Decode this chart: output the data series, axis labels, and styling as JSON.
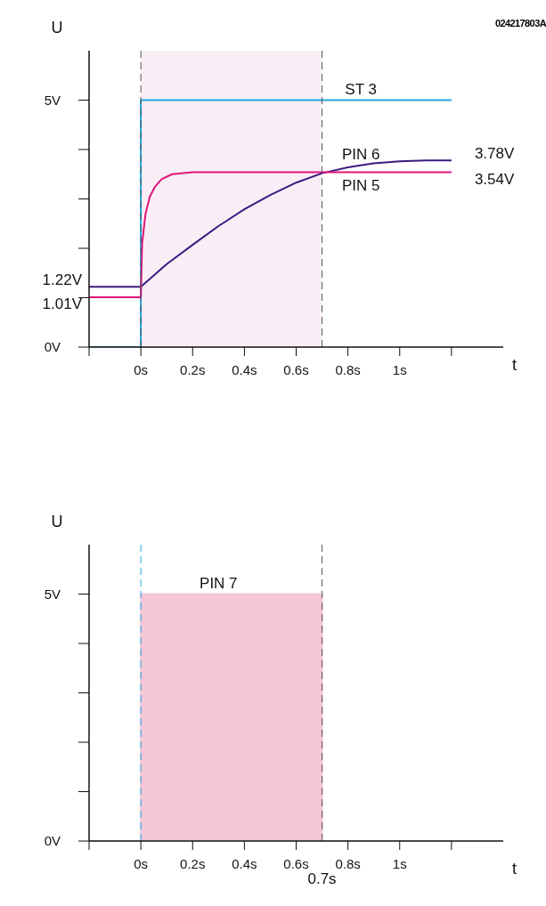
{
  "chart_data": [
    {
      "type": "line",
      "xlabel": "t",
      "ylabel": "U",
      "xlim": [
        -0.2,
        1.4
      ],
      "ylim": [
        0,
        6
      ],
      "xticks": [
        {
          "value": -0.2,
          "label": null
        },
        {
          "value": 0,
          "label": "0s"
        },
        {
          "value": 0.2,
          "label": "0.2s"
        },
        {
          "value": 0.4,
          "label": "0.4s"
        },
        {
          "value": 0.6,
          "label": "0.6s"
        },
        {
          "value": 0.8,
          "label": "0.8s"
        },
        {
          "value": 1,
          "label": "1s"
        },
        {
          "value": 1.2,
          "label": null
        }
      ],
      "yticks": [
        {
          "value": 0,
          "label": "0V"
        },
        {
          "value": 1,
          "label": null
        },
        {
          "value": 2,
          "label": null
        },
        {
          "value": 3,
          "label": null
        },
        {
          "value": 4,
          "label": null
        },
        {
          "value": 5,
          "label": "5V"
        }
      ],
      "series": [
        {
          "name": "ST 3",
          "color": "#1fa8e0",
          "x": [
            -0.2,
            0,
            0,
            1.2
          ],
          "values": [
            0,
            0,
            5,
            5
          ]
        },
        {
          "name": "PIN 6",
          "color": "#3b1a80",
          "x": [
            -0.2,
            0,
            0.1,
            0.2,
            0.3,
            0.4,
            0.5,
            0.6,
            0.7,
            0.8,
            0.9,
            1.0,
            1.1,
            1.2
          ],
          "values": [
            1.22,
            1.22,
            1.68,
            2.07,
            2.45,
            2.79,
            3.08,
            3.33,
            3.52,
            3.64,
            3.72,
            3.76,
            3.78,
            3.78
          ]
        },
        {
          "name": "PIN 5",
          "color": "#e0147a",
          "x": [
            -0.2,
            0,
            0.005,
            0.018,
            0.035,
            0.054,
            0.08,
            0.12,
            0.2,
            1.2
          ],
          "values": [
            1.01,
            1.01,
            2.1,
            2.7,
            3.05,
            3.24,
            3.4,
            3.5,
            3.54,
            3.54
          ]
        }
      ],
      "bands": [
        {
          "axis": "x",
          "from": 0,
          "to": 0.7,
          "color": "#f9eef6"
        }
      ],
      "ref_lines": [
        {
          "axis": "x",
          "value": 0,
          "color": "#555555",
          "line_style": "dashed"
        },
        {
          "axis": "x",
          "value": 0.7,
          "color": "#555555",
          "line_style": "dashed"
        }
      ],
      "annotations": [
        "024217803A",
        {
          "text": "1.22V",
          "x": -0.2,
          "y": 1.22
        },
        {
          "text": "1.01V",
          "x": -0.2,
          "y": 1.01
        },
        {
          "text": "3.78V",
          "x": 1.2,
          "y": 3.78
        },
        {
          "text": "3.54V",
          "x": 1.2,
          "y": 3.54
        }
      ],
      "grid": false,
      "legend": false
    },
    {
      "type": "area",
      "xlabel": "t",
      "ylabel": "U",
      "xlim": [
        -0.2,
        1.4
      ],
      "ylim": [
        0,
        6
      ],
      "xticks": [
        {
          "value": -0.2,
          "label": null
        },
        {
          "value": 0,
          "label": "0s"
        },
        {
          "value": 0.2,
          "label": "0.2s"
        },
        {
          "value": 0.4,
          "label": "0.4s"
        },
        {
          "value": 0.6,
          "label": "0.6s"
        },
        {
          "value": 0.8,
          "label": "0.8s"
        },
        {
          "value": 1,
          "label": "1s"
        },
        {
          "value": 1.2,
          "label": null
        }
      ],
      "yticks": [
        {
          "value": 0,
          "label": "0V"
        },
        {
          "value": 1,
          "label": null
        },
        {
          "value": 2,
          "label": null
        },
        {
          "value": 3,
          "label": null
        },
        {
          "value": 4,
          "label": null
        },
        {
          "value": 5,
          "label": "5V"
        }
      ],
      "series": [
        {
          "name": "PIN 7",
          "color": "#f4c6d6",
          "x": [
            -0.2,
            0,
            0,
            0.7,
            0.7,
            1.2
          ],
          "values": [
            0,
            0,
            5,
            5,
            0,
            0
          ]
        }
      ],
      "ref_lines": [
        {
          "axis": "x",
          "value": 0,
          "color": "#1fa8e0",
          "line_style": "dashed"
        },
        {
          "axis": "x",
          "value": 0.7,
          "color": "#555555",
          "line_style": "dashed"
        }
      ],
      "annotations": [
        {
          "text": "0.7s",
          "x": 0.7,
          "y": 0
        }
      ],
      "grid": false,
      "legend": false
    }
  ]
}
